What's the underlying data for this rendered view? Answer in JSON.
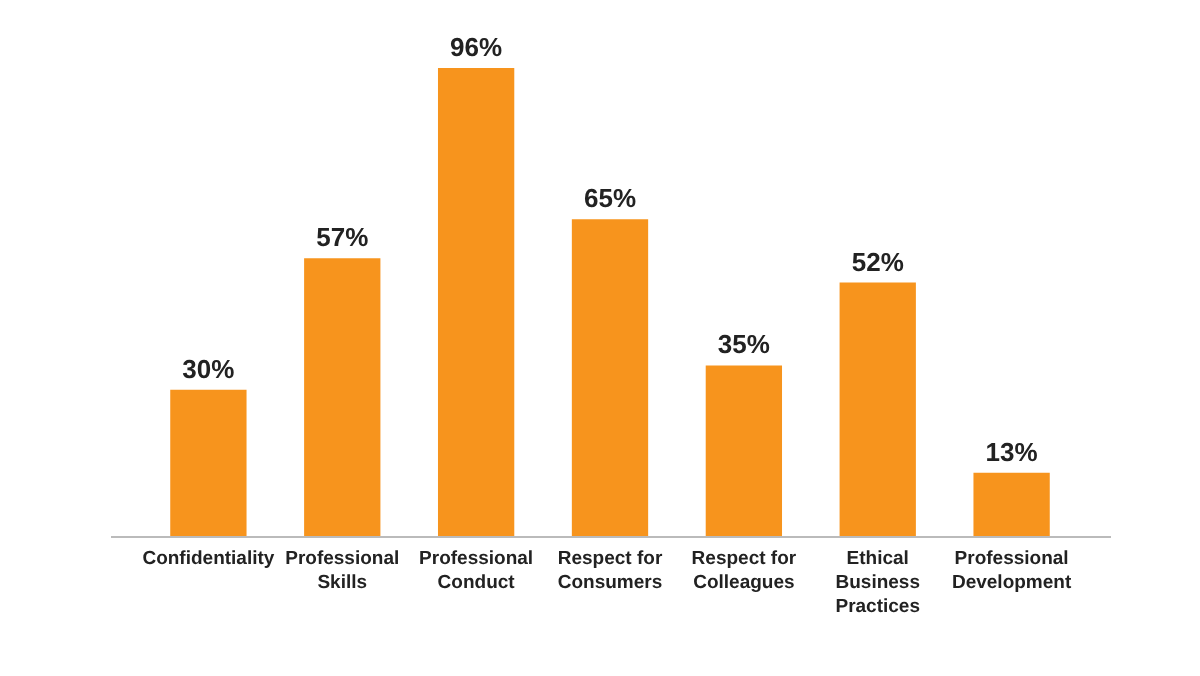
{
  "chart_data": {
    "type": "bar",
    "categories": [
      "Confidentiality",
      "Professional Skills",
      "Professional Conduct",
      "Respect for Consumers",
      "Respect for Colleagues",
      "Ethical Business Practices",
      "Professional Development"
    ],
    "values": [
      30,
      57,
      96,
      65,
      35,
      52,
      13
    ],
    "value_labels": [
      "30%",
      "57%",
      "96%",
      "65%",
      "35%",
      "52%",
      "13%"
    ],
    "color": "#f7941d"
  }
}
